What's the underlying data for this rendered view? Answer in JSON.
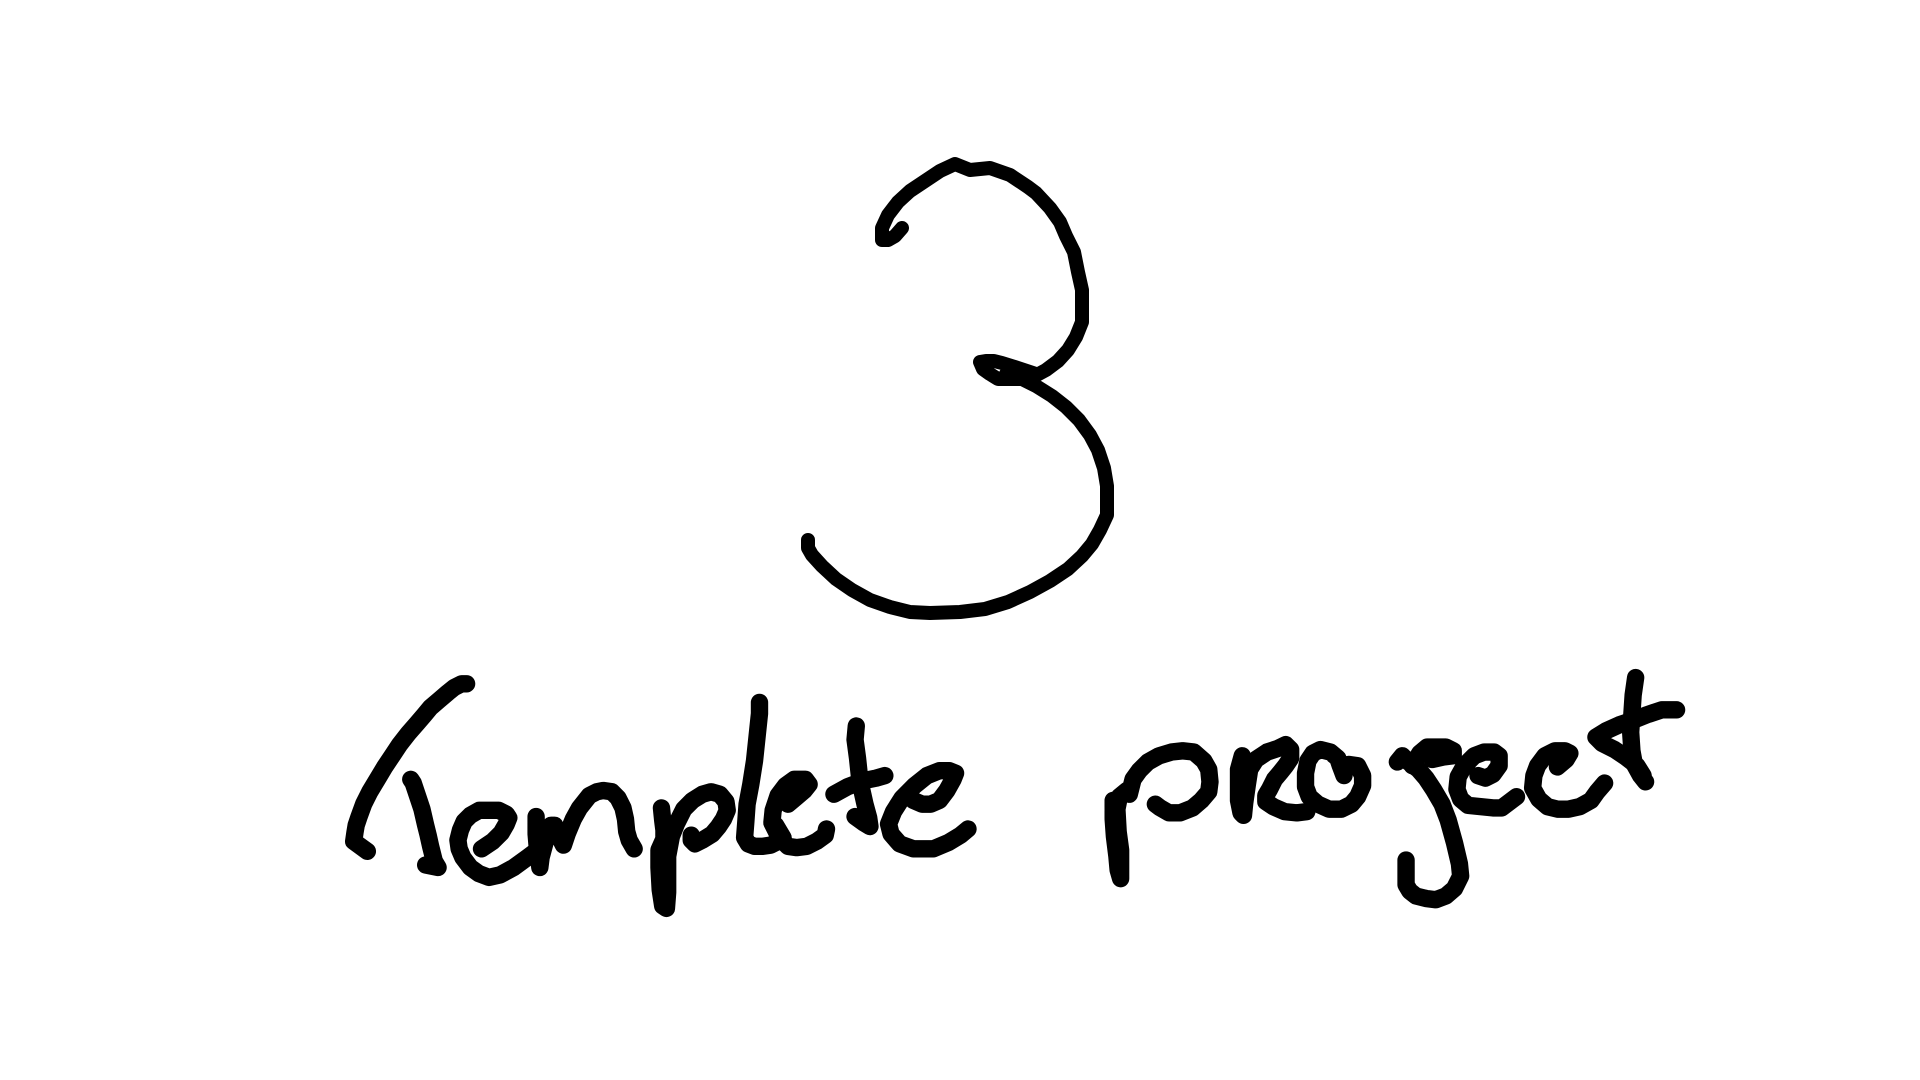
{
  "drawing": {
    "number": "3",
    "caption": "Template project",
    "ink_color": "#000000",
    "background_color": "#ffffff"
  }
}
